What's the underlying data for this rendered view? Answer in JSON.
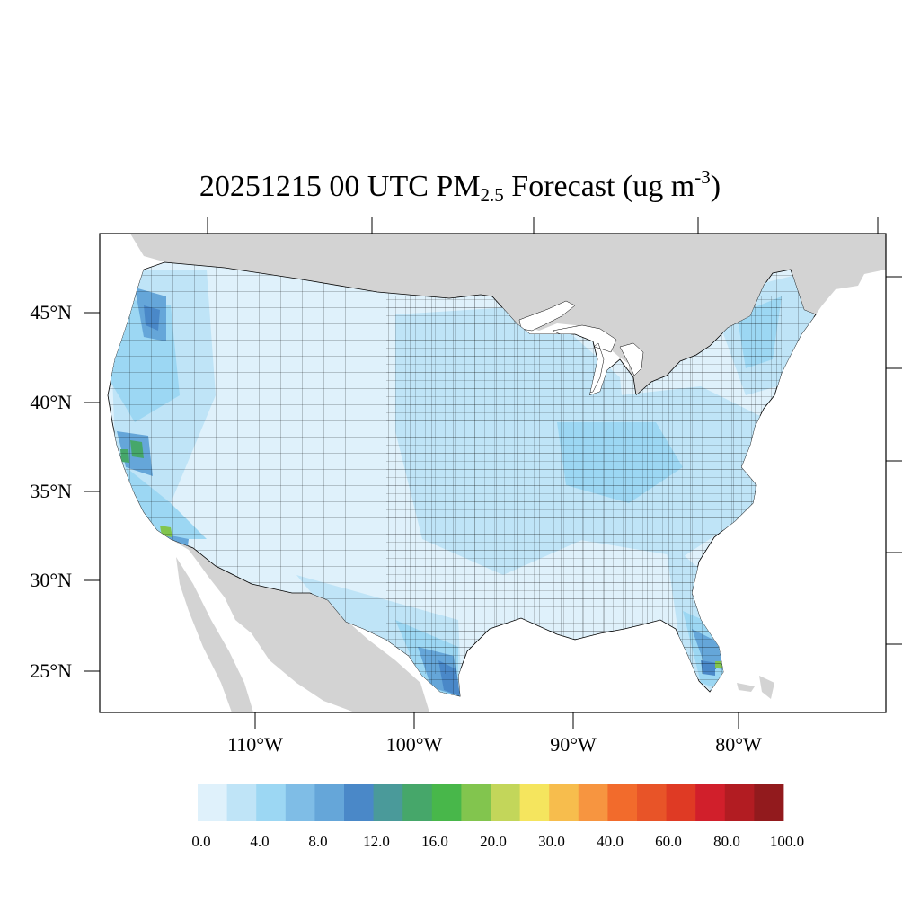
{
  "title": {
    "date": "20251215",
    "hour": "00 UTC",
    "pollutant": "PM",
    "pollutant_sub": "2.5",
    "product": "Forecast",
    "units_prefix": "(ug m",
    "units_exp": "-3",
    "units_suffix": ")"
  },
  "lat_labels": [
    "45°N",
    "40°N",
    "35°N",
    "30°N",
    "25°N"
  ],
  "lon_labels": [
    "110°W",
    "100°W",
    "90°W",
    "80°W"
  ],
  "colorbar": {
    "colors": [
      "#dff1fb",
      "#bfe4f7",
      "#9cd7f3",
      "#7fbde6",
      "#65a6d9",
      "#4a88c8",
      "#4a9a9a",
      "#46a76a",
      "#48b74a",
      "#82c54e",
      "#c3d65a",
      "#f5e55e",
      "#f7bd4d",
      "#f79540",
      "#f26b2c",
      "#e85428",
      "#df3a24",
      "#d11f2b",
      "#b21c22",
      "#921a1d"
    ],
    "labels": [
      "0.0",
      "4.0",
      "8.0",
      "12.0",
      "16.0",
      "20.0",
      "30.0",
      "40.0",
      "60.0",
      "80.0",
      "100.0"
    ]
  },
  "colors": {
    "land_background": "#d3d3d3",
    "water": "#ffffff",
    "county_border": "#000000"
  }
}
